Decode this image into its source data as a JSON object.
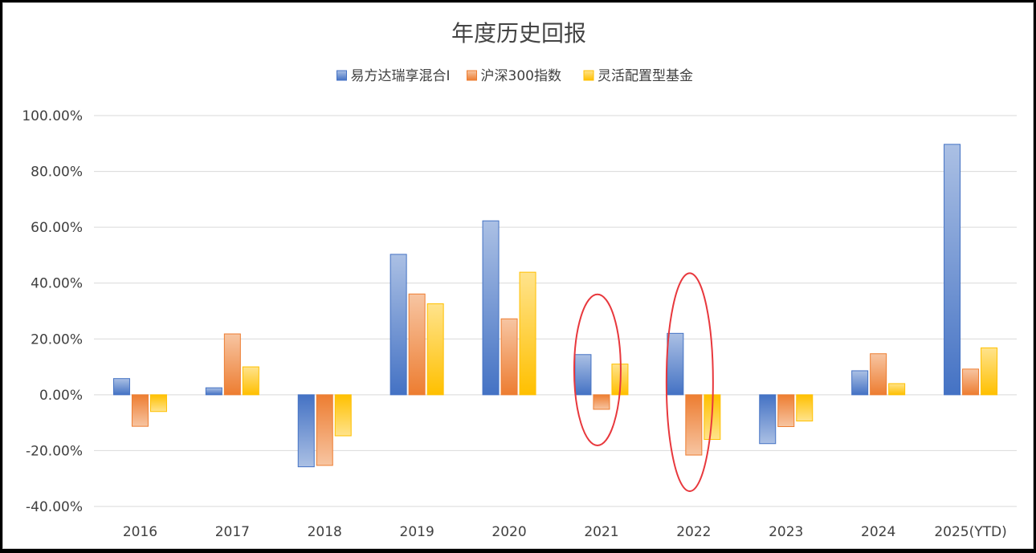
{
  "chart_data": {
    "type": "bar",
    "title": "年度历史回报",
    "categories": [
      "2016",
      "2017",
      "2018",
      "2019",
      "2020",
      "2021",
      "2022",
      "2023",
      "2024",
      "2025(YTD)"
    ],
    "series": [
      {
        "name": "易方达瑞享混合I",
        "color": "#4472C4",
        "values": [
          5.8,
          2.5,
          -25.8,
          50.3,
          62.3,
          14.4,
          22.0,
          -17.5,
          8.6,
          89.7
        ]
      },
      {
        "name": "沪深300指数",
        "color": "#ED7D31",
        "values": [
          -11.3,
          21.8,
          -25.3,
          36.1,
          27.2,
          -5.2,
          -21.6,
          -11.4,
          14.7,
          9.2
        ]
      },
      {
        "name": "灵活配置型基金",
        "color": "#FFC000",
        "values": [
          -6.0,
          10.0,
          -14.7,
          32.6,
          43.9,
          11.0,
          -16.0,
          -9.4,
          4.0,
          16.8
        ]
      }
    ],
    "ylim": [
      -40,
      100
    ],
    "y_ticks": [
      "-40.00%",
      "-20.00%",
      "0.00%",
      "20.00%",
      "40.00%",
      "60.00%",
      "80.00%",
      "100.00%"
    ],
    "y_tick_values": [
      -40,
      -20,
      0,
      20,
      40,
      60,
      80,
      100
    ],
    "grid": true,
    "legend_position": "top",
    "annotations": [
      {
        "type": "red-ellipse",
        "category": "2021"
      },
      {
        "type": "red-ellipse",
        "category": "2022"
      }
    ]
  }
}
